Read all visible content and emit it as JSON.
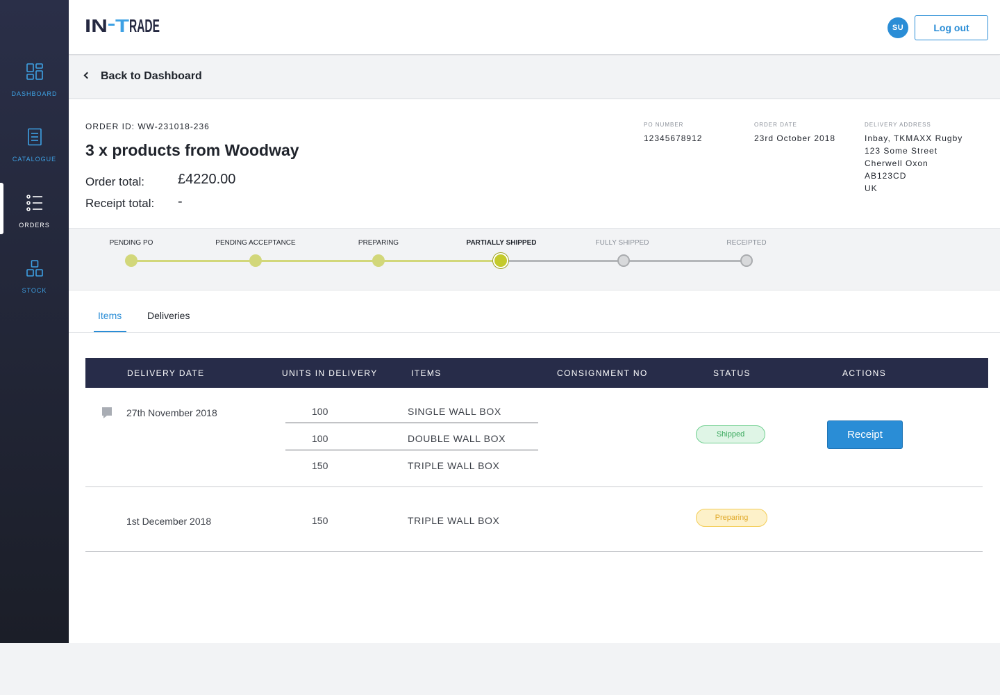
{
  "app": {
    "logo_text": "IN-TRADE"
  },
  "sidebar": {
    "items": [
      {
        "label": "DASHBOARD",
        "icon": "dashboard-icon"
      },
      {
        "label": "CATALOGUE",
        "icon": "catalogue-icon"
      },
      {
        "label": "ORDERS",
        "icon": "orders-list-icon",
        "active": true
      },
      {
        "label": "STOCK",
        "icon": "stock-icon"
      }
    ]
  },
  "header": {
    "avatar_initials": "SU",
    "logout_label": "Log out"
  },
  "nav": {
    "back_label": "Back to Dashboard"
  },
  "order": {
    "id_label": "ORDER ID: WW-231018-236",
    "title": "3 x products from Woodway",
    "order_total_label": "Order total:",
    "order_total_value": "£4220.00",
    "receipt_total_label": "Receipt total:",
    "receipt_total_value": "-",
    "po_number_label": "PO NUMBER",
    "po_number_value": "12345678912",
    "order_date_label": "ORDER DATE",
    "order_date_value": "23rd October 2018",
    "delivery_address_label": "DELIVERY ADDRESS",
    "delivery_address": [
      "Inbay, TKMAXX Rugby",
      "123 Some Street",
      "Cherwell Oxon",
      "AB123CD",
      "UK"
    ]
  },
  "progress": {
    "steps": [
      {
        "label": "PENDING PO",
        "state": "done"
      },
      {
        "label": "PENDING ACCEPTANCE",
        "state": "done"
      },
      {
        "label": "PREPARING",
        "state": "done"
      },
      {
        "label": "PARTIALLY SHIPPED",
        "state": "current"
      },
      {
        "label": "FULLY SHIPPED",
        "state": "future"
      },
      {
        "label": "RECEIPTED",
        "state": "future"
      }
    ],
    "colors": {
      "done": "#d2d77a",
      "current": "#c4ca2c",
      "future": "#a9abae"
    }
  },
  "tabs": [
    {
      "label": "Items",
      "active": true
    },
    {
      "label": "Deliveries",
      "active": false
    }
  ],
  "table": {
    "headers": [
      "DELIVERY DATE",
      "UNITS IN DELIVERY",
      "ITEMS",
      "CONSIGNMENT NO",
      "STATUS",
      "ACTIONS"
    ],
    "rows": [
      {
        "date": "27th November 2018",
        "lines": [
          {
            "units": "100",
            "item": "SINGLE WALL BOX"
          },
          {
            "units": "100",
            "item": "DOUBLE WALL BOX"
          },
          {
            "units": "150",
            "item": "TRIPLE WALL BOX"
          }
        ],
        "consignment": "",
        "status": "Shipped",
        "action_label": "Receipt"
      },
      {
        "date": "1st December 2018",
        "lines": [
          {
            "units": "150",
            "item": "TRIPLE WALL BOX"
          }
        ],
        "consignment": "",
        "status": "Preparing",
        "action_label": ""
      }
    ]
  },
  "colors": {
    "accent": "#2a8dd6",
    "sidebar": "#242840",
    "table_header": "#272c49",
    "shipped": "#3aa95e",
    "preparing": "#e0a92a"
  }
}
